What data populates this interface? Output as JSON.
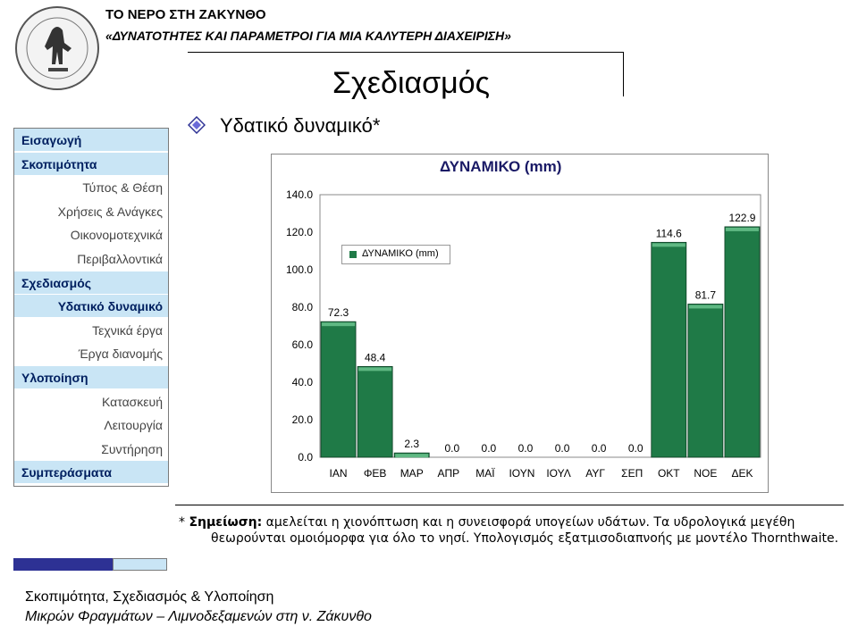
{
  "header": {
    "title": "ΤΟ ΝΕΡΟ ΣΤΗ ΖΑΚΥΝΘΟ",
    "subtitle": "«ΔΥΝΑΤΟΤΗΤΕΣ ΚΑΙ ΠΑΡΑΜΕΤΡΟΙ ΓΙΑ ΜΙΑ ΚΑΛΥΤΕΡΗ ΔΙΑΧΕΙΡΙΣΗ»"
  },
  "slide_title": "Σχεδιασμός",
  "section_heading": "Υδατικό δυναμικό*",
  "sidebar": {
    "items": [
      {
        "label": "Εισαγωγή",
        "kind": "main"
      },
      {
        "label": "Σκοπιμότητα",
        "kind": "main"
      },
      {
        "label": "Τύπος & Θέση",
        "kind": "sub"
      },
      {
        "label": "Χρήσεις & Ανάγκες",
        "kind": "sub"
      },
      {
        "label": "Οικονομοτεχνικά",
        "kind": "sub"
      },
      {
        "label": "Περιβαλλοντικά",
        "kind": "sub"
      },
      {
        "label": "Σχεδιασμός",
        "kind": "main"
      },
      {
        "label": "Υδατικό δυναμικό",
        "kind": "active"
      },
      {
        "label": "Τεχνικά έργα",
        "kind": "sub"
      },
      {
        "label": "Έργα διανομής",
        "kind": "sub"
      },
      {
        "label": "Υλοποίηση",
        "kind": "main"
      },
      {
        "label": "Κατασκευή",
        "kind": "sub"
      },
      {
        "label": "Λειτουργία",
        "kind": "sub"
      },
      {
        "label": "Συντήρηση",
        "kind": "sub"
      },
      {
        "label": "Συμπεράσματα",
        "kind": "main"
      }
    ]
  },
  "chart_data": {
    "type": "bar",
    "title": "ΔΥΝΑΜΙΚΟ (mm)",
    "legend": "ΔΥΝΑΜΙΚΟ (mm)",
    "legend_position": "top-left",
    "categories": [
      "ΙΑΝ",
      "ΦΕΒ",
      "ΜΑΡ",
      "ΑΠΡ",
      "ΜΑΪ",
      "ΙΟΥΝ",
      "ΙΟΥΛ",
      "ΑΥΓ",
      "ΣΕΠ",
      "ΟΚΤ",
      "ΝΟΕ",
      "ΔΕΚ"
    ],
    "values": [
      72.3,
      48.4,
      2.3,
      0.0,
      0.0,
      0.0,
      0.0,
      0.0,
      0.0,
      114.6,
      81.7,
      122.9
    ],
    "value_labels": [
      "72.3",
      "48.4",
      "2.3",
      "0.0",
      "0.0",
      "0.0",
      "0.0",
      "0.0",
      "0.0",
      "114.6",
      "81.7",
      "122.9"
    ],
    "ylim": [
      0,
      140
    ],
    "yticks": [
      "0.0",
      "20.0",
      "40.0",
      "60.0",
      "80.0",
      "100.0",
      "120.0",
      "140.0"
    ],
    "grid": false,
    "bar_color": "#1f7a47"
  },
  "note": {
    "prefix": "* ",
    "bold": "Σημείωση:",
    "line1": " αμελείται η χιονόπτωση και η συνεισφορά υπογείων υδάτων. Τα υδρολογικά μεγέθη",
    "line2": "θεωρούνται ομοιόμορφα για όλο το νησί. Υπολογισμός εξατμισοδιαπνοής με μοντέλο Thornthwaite."
  },
  "footer": {
    "line1": "Σκοπιμότητα, Σχεδιασμός & Υλοποίηση",
    "line2": "Μικρών Φραγμάτων – Λιμνοδεξαμενών στη ν. Ζάκυνθο"
  }
}
